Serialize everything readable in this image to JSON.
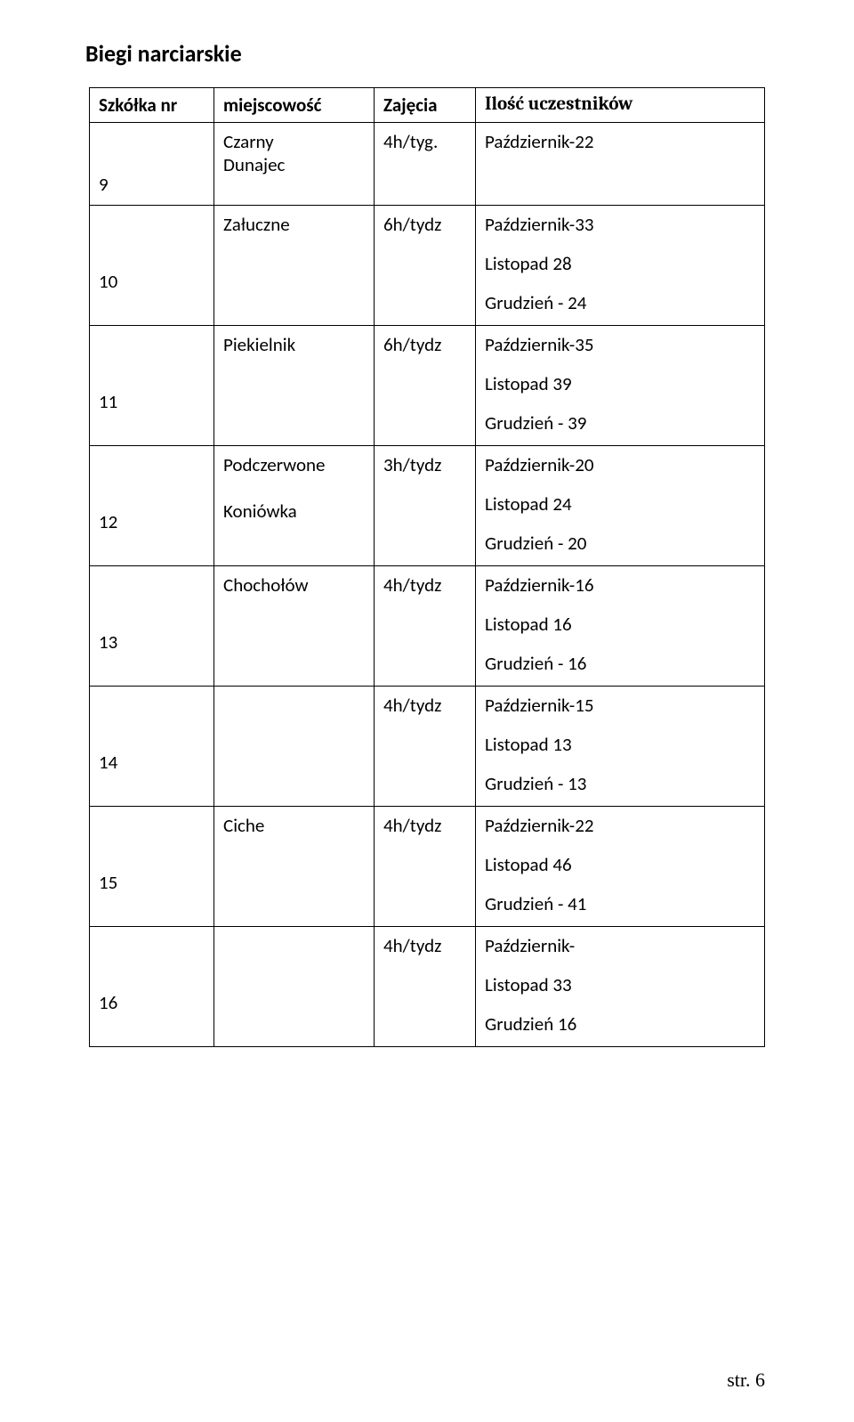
{
  "page_title": "Biegi narciarskie",
  "columns": {
    "c1": "Szkółka nr",
    "c2": "miejscowość",
    "c3": "Zajęcia",
    "c4": "Ilość uczestników"
  },
  "rows": [
    {
      "idx": "9",
      "loc_lines": [
        "Czarny",
        "Dunajec"
      ],
      "zaj": "4h/tyg.",
      "ilosc": [
        "Październik-22"
      ],
      "first": true
    },
    {
      "idx": "10",
      "loc_lines": [
        "Załuczne"
      ],
      "zaj": "6h/tydz",
      "ilosc": [
        "Październik-33",
        "Listopad 28",
        "Grudzień - 24"
      ]
    },
    {
      "idx": "11",
      "loc_lines": [
        "Piekielnik"
      ],
      "zaj": "6h/tydz",
      "ilosc": [
        "Październik-35",
        "Listopad 39",
        "Grudzień - 39"
      ]
    },
    {
      "idx": "12",
      "loc_lines": [
        "Podczerwone",
        "",
        "Koniówka"
      ],
      "zaj": "3h/tydz",
      "ilosc": [
        "Październik-20",
        "Listopad 24",
        "Grudzień - 20"
      ]
    },
    {
      "idx": "13",
      "loc_lines": [
        "Chochołów"
      ],
      "zaj": "4h/tydz",
      "ilosc": [
        "Październik-16",
        "Listopad 16",
        "Grudzień - 16"
      ]
    },
    {
      "idx": "14",
      "loc_lines": [
        ""
      ],
      "zaj": "4h/tydz",
      "ilosc": [
        "Październik-15",
        "Listopad 13",
        "Grudzień - 13"
      ]
    },
    {
      "idx": "15",
      "loc_lines": [
        "Ciche"
      ],
      "zaj": "4h/tydz",
      "ilosc": [
        "Październik-22",
        "Listopad 46",
        "Grudzień - 41"
      ]
    },
    {
      "idx": "16",
      "loc_lines": [
        ""
      ],
      "zaj": "4h/tydz",
      "ilosc": [
        "Październik-",
        "Listopad 33",
        "Grudzień 16"
      ]
    }
  ],
  "footer": "str. 6"
}
